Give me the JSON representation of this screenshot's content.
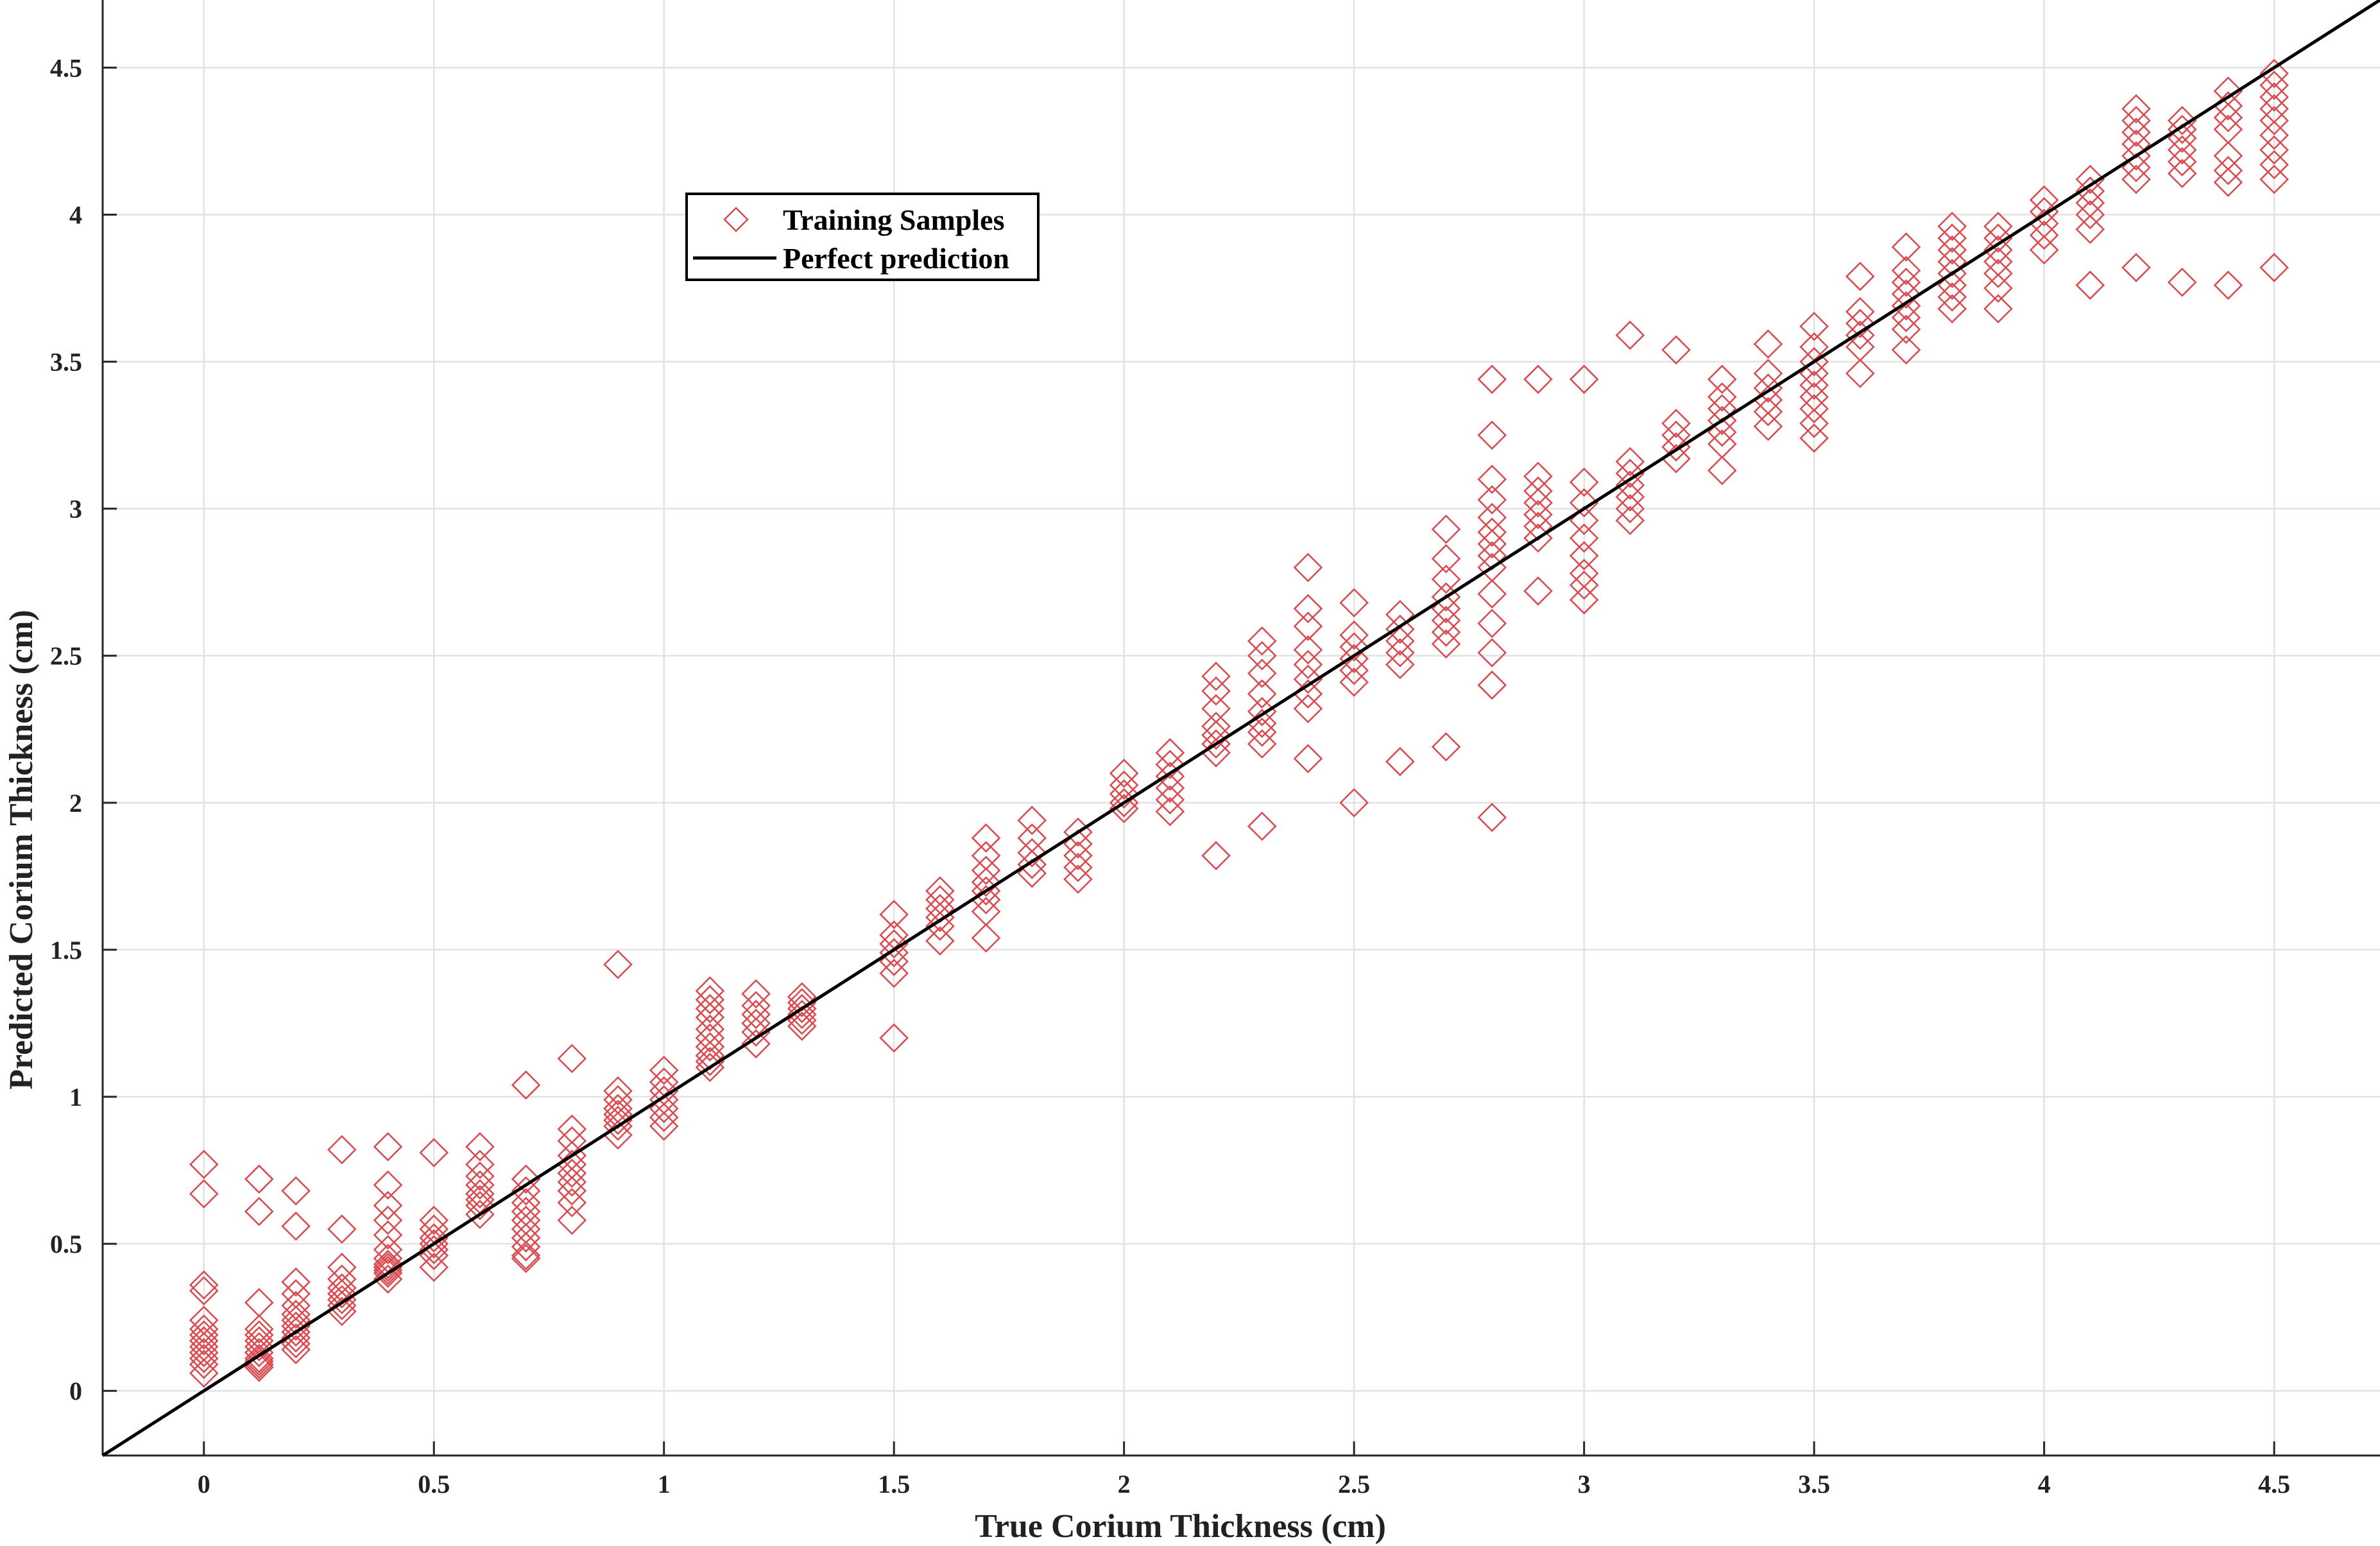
{
  "chart_data": {
    "type": "scatter",
    "xlabel": "True Corium Thickness (cm)",
    "ylabel": "Predicted Corium Thickness (cm)",
    "xlim": [
      -0.22,
      4.73
    ],
    "ylim": [
      -0.22,
      4.73
    ],
    "xticks": [
      0,
      0.5,
      1,
      1.5,
      2,
      2.5,
      3,
      3.5,
      4,
      4.5
    ],
    "yticks": [
      0,
      0.5,
      1,
      1.5,
      2,
      2.5,
      3,
      3.5,
      4,
      4.5
    ],
    "xtick_labels": [
      "0",
      "0.5",
      "1",
      "1.5",
      "2",
      "2.5",
      "3",
      "3.5",
      "4",
      "4.5"
    ],
    "ytick_labels": [
      "0",
      "0.5",
      "1",
      "1.5",
      "2",
      "2.5",
      "3",
      "3.5",
      "4",
      "4.5"
    ],
    "grid": true,
    "legend_position": "upper-left, inside plot",
    "series": [
      {
        "name": "Training Samples",
        "marker": "diamond-open",
        "color": "#e0474c",
        "groups": [
          {
            "x": 0,
            "y": [
              0.77,
              0.67,
              0.36,
              0.34,
              0.24,
              0.21,
              0.19,
              0.17,
              0.15,
              0.13,
              0.11,
              0.09,
              0.06
            ]
          },
          {
            "x": 0.12,
            "y": [
              0.72,
              0.61,
              0.3,
              0.21,
              0.19,
              0.17,
              0.15,
              0.13,
              0.11,
              0.1,
              0.09,
              0.08
            ]
          },
          {
            "x": 0.2,
            "y": [
              0.68,
              0.56,
              0.37,
              0.33,
              0.29,
              0.26,
              0.24,
              0.22,
              0.2,
              0.18,
              0.16,
              0.14
            ]
          },
          {
            "x": 0.3,
            "y": [
              0.82,
              0.55,
              0.42,
              0.38,
              0.35,
              0.33,
              0.31,
              0.29,
              0.27
            ]
          },
          {
            "x": 0.4,
            "y": [
              0.83,
              0.7,
              0.63,
              0.58,
              0.53,
              0.48,
              0.45,
              0.43,
              0.42,
              0.41,
              0.4,
              0.38
            ]
          },
          {
            "x": 0.5,
            "y": [
              0.81,
              0.58,
              0.55,
              0.52,
              0.5,
              0.48,
              0.46,
              0.42
            ]
          },
          {
            "x": 0.6,
            "y": [
              0.83,
              0.77,
              0.73,
              0.7,
              0.67,
              0.65,
              0.63,
              0.6
            ]
          },
          {
            "x": 0.7,
            "y": [
              1.04,
              0.72,
              0.68,
              0.64,
              0.61,
              0.58,
              0.55,
              0.52,
              0.49,
              0.46,
              0.45
            ]
          },
          {
            "x": 0.8,
            "y": [
              1.13,
              0.89,
              0.85,
              0.8,
              0.77,
              0.74,
              0.71,
              0.68,
              0.64,
              0.58
            ]
          },
          {
            "x": 0.9,
            "y": [
              1.45,
              1.02,
              0.99,
              0.96,
              0.94,
              0.92,
              0.9,
              0.87
            ]
          },
          {
            "x": 1.0,
            "y": [
              1.09,
              1.05,
              1.02,
              0.99,
              0.96,
              0.93,
              0.9
            ]
          },
          {
            "x": 1.1,
            "y": [
              1.36,
              1.33,
              1.3,
              1.27,
              1.23,
              1.2,
              1.17,
              1.14,
              1.12,
              1.1
            ]
          },
          {
            "x": 1.2,
            "y": [
              1.35,
              1.31,
              1.28,
              1.25,
              1.22,
              1.18
            ]
          },
          {
            "x": 1.3,
            "y": [
              1.34,
              1.32,
              1.3,
              1.28,
              1.26,
              1.24
            ]
          },
          {
            "x": 1.5,
            "y": [
              1.62,
              1.55,
              1.52,
              1.49,
              1.46,
              1.42,
              1.2
            ]
          },
          {
            "x": 1.6,
            "y": [
              1.7,
              1.67,
              1.64,
              1.61,
              1.58,
              1.53
            ]
          },
          {
            "x": 1.7,
            "y": [
              1.88,
              1.82,
              1.77,
              1.73,
              1.7,
              1.67,
              1.63,
              1.54
            ]
          },
          {
            "x": 1.8,
            "y": [
              1.94,
              1.88,
              1.83,
              1.79,
              1.76
            ]
          },
          {
            "x": 1.9,
            "y": [
              1.9,
              1.86,
              1.82,
              1.78,
              1.74
            ]
          },
          {
            "x": 2.0,
            "y": [
              2.1,
              2.06,
              2.03,
              2.0,
              1.98
            ]
          },
          {
            "x": 2.1,
            "y": [
              2.17,
              2.13,
              2.09,
              2.05,
              2.01,
              1.97
            ]
          },
          {
            "x": 2.2,
            "y": [
              2.43,
              2.38,
              2.32,
              2.26,
              2.23,
              2.2,
              2.17,
              1.82
            ]
          },
          {
            "x": 2.3,
            "y": [
              2.55,
              2.5,
              2.44,
              2.37,
              2.31,
              2.27,
              2.24,
              2.2,
              1.92
            ]
          },
          {
            "x": 2.4,
            "y": [
              2.8,
              2.66,
              2.6,
              2.52,
              2.47,
              2.42,
              2.37,
              2.32,
              2.15
            ]
          },
          {
            "x": 2.5,
            "y": [
              2.68,
              2.57,
              2.53,
              2.49,
              2.45,
              2.41,
              2.0
            ]
          },
          {
            "x": 2.6,
            "y": [
              2.64,
              2.59,
              2.55,
              2.51,
              2.47,
              2.14
            ]
          },
          {
            "x": 2.7,
            "y": [
              2.93,
              2.83,
              2.76,
              2.7,
              2.66,
              2.62,
              2.58,
              2.54,
              2.19
            ]
          },
          {
            "x": 2.8,
            "y": [
              3.44,
              3.25,
              3.1,
              3.03,
              2.97,
              2.92,
              2.88,
              2.84,
              2.8,
              2.71,
              2.61,
              2.51,
              2.4,
              1.95
            ]
          },
          {
            "x": 2.9,
            "y": [
              3.44,
              3.11,
              3.06,
              3.02,
              2.98,
              2.94,
              2.9,
              2.72
            ]
          },
          {
            "x": 3.0,
            "y": [
              3.44,
              3.09,
              3.02,
              2.96,
              2.9,
              2.84,
              2.78,
              2.74,
              2.69
            ]
          },
          {
            "x": 3.1,
            "y": [
              3.59,
              3.16,
              3.12,
              3.08,
              3.04,
              3.0,
              2.96
            ]
          },
          {
            "x": 3.2,
            "y": [
              3.54,
              3.29,
              3.25,
              3.21,
              3.17
            ]
          },
          {
            "x": 3.3,
            "y": [
              3.44,
              3.38,
              3.34,
              3.3,
              3.26,
              3.22,
              3.13
            ]
          },
          {
            "x": 3.4,
            "y": [
              3.56,
              3.46,
              3.41,
              3.37,
              3.33,
              3.28
            ]
          },
          {
            "x": 3.5,
            "y": [
              3.62,
              3.55,
              3.5,
              3.46,
              3.42,
              3.38,
              3.34,
              3.29,
              3.24
            ]
          },
          {
            "x": 3.6,
            "y": [
              3.79,
              3.67,
              3.63,
              3.59,
              3.55,
              3.46
            ]
          },
          {
            "x": 3.7,
            "y": [
              3.89,
              3.81,
              3.77,
              3.73,
              3.69,
              3.65,
              3.61,
              3.54
            ]
          },
          {
            "x": 3.8,
            "y": [
              3.96,
              3.92,
              3.88,
              3.84,
              3.8,
              3.76,
              3.72,
              3.68
            ]
          },
          {
            "x": 3.9,
            "y": [
              3.96,
              3.92,
              3.88,
              3.84,
              3.8,
              3.75,
              3.68
            ]
          },
          {
            "x": 4.0,
            "y": [
              4.05,
              4.01,
              3.97,
              3.93,
              3.88
            ]
          },
          {
            "x": 4.1,
            "y": [
              4.12,
              4.08,
              4.04,
              4.0,
              3.95,
              3.76
            ]
          },
          {
            "x": 4.2,
            "y": [
              4.36,
              4.32,
              4.28,
              4.24,
              4.2,
              4.16,
              4.12,
              3.82
            ]
          },
          {
            "x": 4.3,
            "y": [
              4.32,
              4.29,
              4.26,
              4.22,
              4.18,
              4.14,
              3.77
            ]
          },
          {
            "x": 4.4,
            "y": [
              4.42,
              4.37,
              4.33,
              4.29,
              4.2,
              4.15,
              4.11,
              3.76
            ]
          },
          {
            "x": 4.5,
            "y": [
              4.48,
              4.44,
              4.4,
              4.36,
              4.32,
              4.27,
              4.22,
              4.17,
              4.12,
              3.82
            ]
          }
        ]
      },
      {
        "name": "Perfect prediction",
        "type": "line",
        "color": "#000000",
        "x": [
          -0.22,
          4.73
        ],
        "y": [
          -0.22,
          4.73
        ]
      }
    ]
  }
}
